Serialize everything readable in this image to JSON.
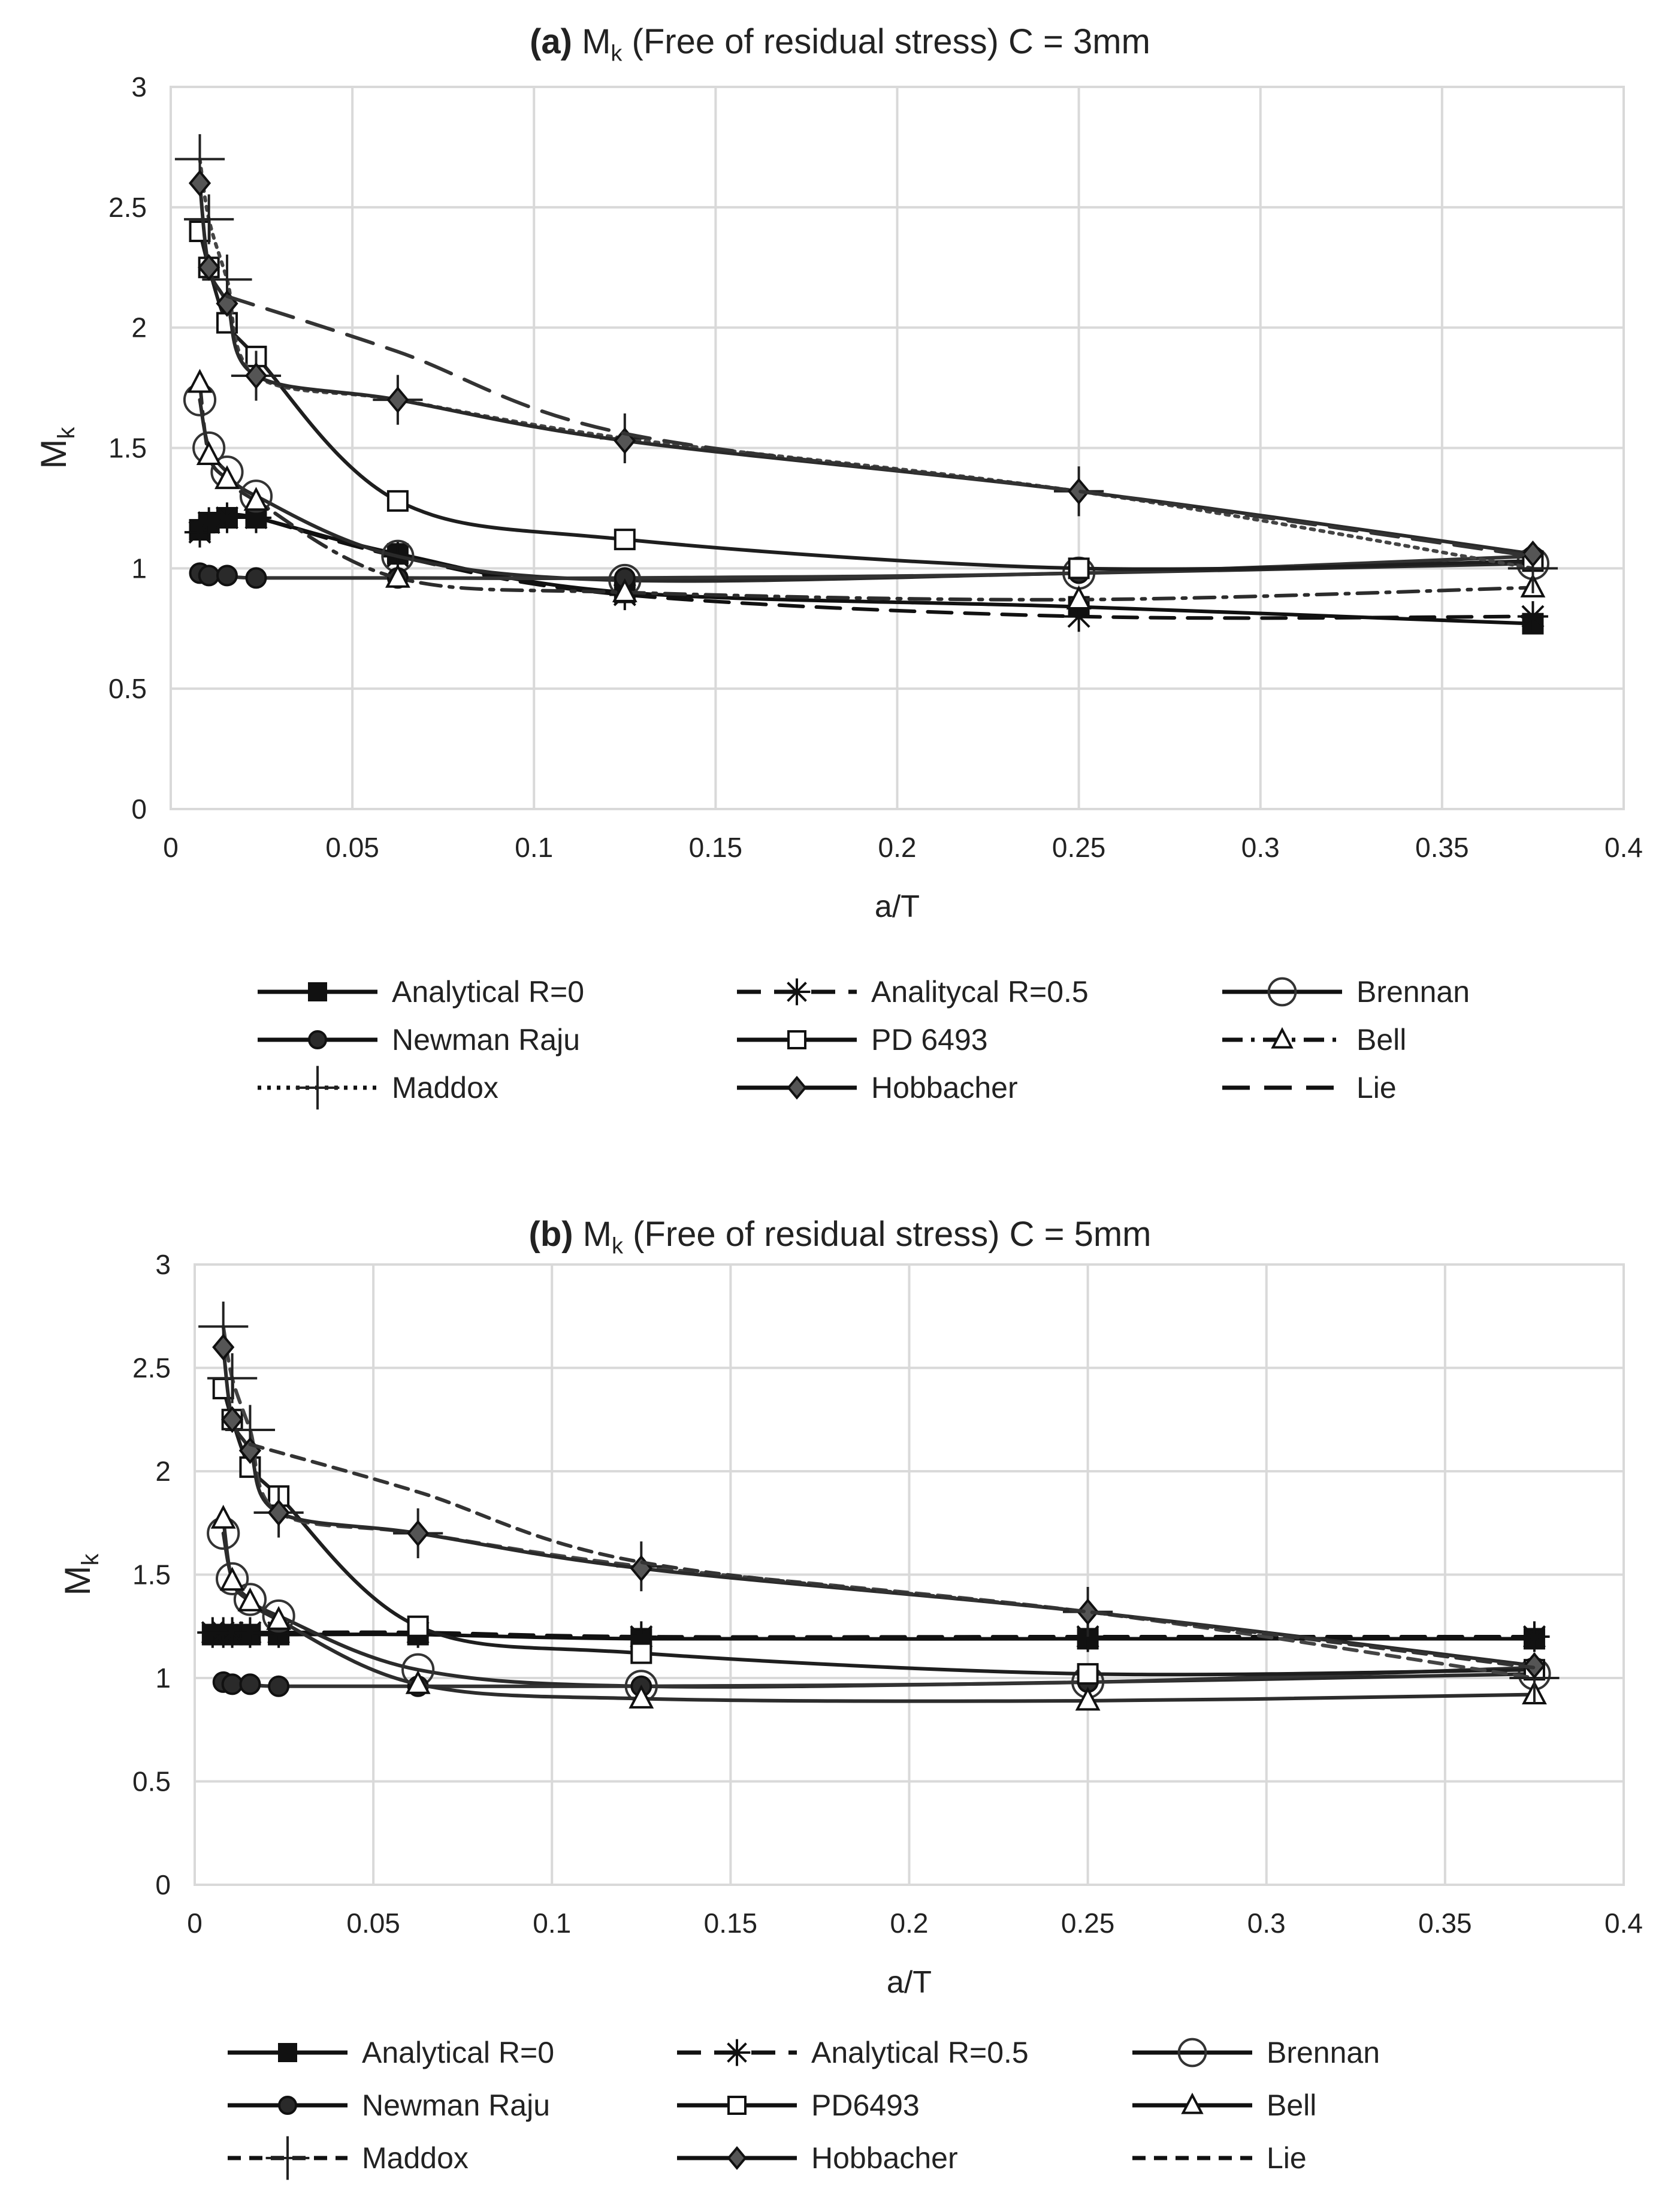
{
  "chart_data": [
    {
      "id": "a",
      "type": "line",
      "title_prefix": "(a)",
      "title_text": " M",
      "title_sub": "k",
      "title_rest": " (Free of residual stress)  C = 3mm",
      "xlabel": "a/T",
      "ylabel": "M",
      "ylabel_sub": "k",
      "xlim": [
        0,
        0.4
      ],
      "ylim": [
        0,
        3
      ],
      "xticks": [
        "0",
        "0.05",
        "0.1",
        "0.15",
        "0.2",
        "0.25",
        "0.3",
        "0.35",
        "0.4"
      ],
      "yticks": [
        "0",
        "0.5",
        "1",
        "1.5",
        "2",
        "2.5",
        "3"
      ],
      "grid": true,
      "legend_position": "bottom",
      "series": [
        {
          "name": "Analytical R=0",
          "marker": "filled-square",
          "dash": "solid",
          "x": [
            0.008,
            0.0105,
            0.0155,
            0.0235,
            0.0625,
            0.125,
            0.25,
            0.375
          ],
          "y": [
            1.16,
            1.19,
            1.21,
            1.21,
            1.06,
            0.9,
            0.84,
            0.77
          ]
        },
        {
          "name": "Analitycal R=0.5",
          "marker": "asterisk",
          "dash": "dash",
          "x": [
            0.008,
            0.0105,
            0.0155,
            0.0235,
            0.0625,
            0.125,
            0.25,
            0.375
          ],
          "y": [
            1.15,
            1.19,
            1.21,
            1.21,
            1.05,
            0.89,
            0.8,
            0.8
          ]
        },
        {
          "name": "Brennan",
          "marker": "open-circle",
          "dash": "solid",
          "x": [
            0.008,
            0.0105,
            0.0155,
            0.0235,
            0.0625,
            0.125,
            0.25,
            0.375
          ],
          "y": [
            1.7,
            1.5,
            1.4,
            1.3,
            1.05,
            0.95,
            0.98,
            1.02
          ]
        },
        {
          "name": "Newman Raju",
          "marker": "filled-circle",
          "dash": "solid",
          "x": [
            0.008,
            0.0105,
            0.0155,
            0.0235,
            0.0625,
            0.125,
            0.25,
            0.375
          ],
          "y": [
            0.98,
            0.97,
            0.97,
            0.96,
            0.96,
            0.96,
            0.98,
            1.05
          ]
        },
        {
          "name": "PD 6493",
          "marker": "open-square",
          "dash": "solid",
          "x": [
            0.008,
            0.0105,
            0.0155,
            0.0235,
            0.0625,
            0.125,
            0.25,
            0.375
          ],
          "y": [
            2.4,
            2.25,
            2.02,
            1.88,
            1.28,
            1.12,
            1.0,
            1.03
          ]
        },
        {
          "name": "Bell",
          "marker": "open-triangle",
          "dash": "dashdot",
          "x": [
            0.008,
            0.0105,
            0.0155,
            0.0235,
            0.0625,
            0.125,
            0.25,
            0.375
          ],
          "y": [
            1.77,
            1.47,
            1.37,
            1.28,
            0.96,
            0.9,
            0.87,
            0.92
          ]
        },
        {
          "name": "Maddox",
          "marker": "plus",
          "dash": "dot",
          "x": [
            0.008,
            0.0105,
            0.0155,
            0.0235,
            0.0625,
            0.125,
            0.25,
            0.375
          ],
          "y": [
            2.7,
            2.45,
            2.2,
            1.8,
            1.7,
            1.54,
            1.32,
            1.0
          ]
        },
        {
          "name": "Hobbacher",
          "marker": "filled-diamond",
          "dash": "solid",
          "x": [
            0.008,
            0.0105,
            0.0155,
            0.0235,
            0.0625,
            0.125,
            0.25,
            0.375
          ],
          "y": [
            2.6,
            2.25,
            2.1,
            1.8,
            1.7,
            1.53,
            1.32,
            1.06
          ]
        },
        {
          "name": "Lie",
          "marker": "none",
          "dash": "longdash",
          "x": [
            0.0155,
            0.0625,
            0.125,
            0.25,
            0.375
          ],
          "y": [
            2.13,
            1.9,
            1.56,
            1.32,
            1.05
          ]
        }
      ]
    },
    {
      "id": "b",
      "type": "line",
      "title_prefix": "(b)",
      "title_text": " M",
      "title_sub": "k",
      "title_rest": " (Free of residual stress)  C = 5mm",
      "xlabel": "a/T",
      "ylabel": "M",
      "ylabel_sub": "k",
      "xlim": [
        0,
        0.4
      ],
      "ylim": [
        0,
        3
      ],
      "xticks": [
        "0",
        "0.05",
        "0.1",
        "0.15",
        "0.2",
        "0.25",
        "0.3",
        "0.35",
        "0.4"
      ],
      "yticks": [
        "0",
        "0.5",
        "1",
        "1.5",
        "2",
        "2.5",
        "3"
      ],
      "grid": true,
      "legend_position": "bottom",
      "series": [
        {
          "name": "Analytical R=0",
          "marker": "filled-square",
          "dash": "solid",
          "x": [
            0.005,
            0.008,
            0.0105,
            0.0155,
            0.0235,
            0.0625,
            0.125,
            0.25,
            0.375
          ],
          "y": [
            1.21,
            1.21,
            1.21,
            1.21,
            1.21,
            1.21,
            1.19,
            1.19,
            1.19
          ]
        },
        {
          "name": "Analytical R=0.5",
          "marker": "asterisk",
          "dash": "dash",
          "x": [
            0.005,
            0.008,
            0.0105,
            0.0155,
            0.0235,
            0.0625,
            0.125,
            0.25,
            0.375
          ],
          "y": [
            1.22,
            1.22,
            1.22,
            1.22,
            1.22,
            1.22,
            1.2,
            1.2,
            1.2
          ]
        },
        {
          "name": "Brennan",
          "marker": "open-circle",
          "dash": "solid",
          "x": [
            0.008,
            0.0105,
            0.0155,
            0.0235,
            0.0625,
            0.125,
            0.25,
            0.375
          ],
          "y": [
            1.7,
            1.48,
            1.38,
            1.3,
            1.04,
            0.96,
            0.98,
            1.02
          ]
        },
        {
          "name": "Newman Raju",
          "marker": "filled-circle",
          "dash": "solid",
          "x": [
            0.008,
            0.0105,
            0.0155,
            0.0235,
            0.0625,
            0.125,
            0.25,
            0.375
          ],
          "y": [
            0.98,
            0.97,
            0.97,
            0.96,
            0.96,
            0.96,
            0.98,
            1.05
          ]
        },
        {
          "name": "PD6493",
          "marker": "open-square",
          "dash": "solid",
          "x": [
            0.008,
            0.0105,
            0.0155,
            0.0235,
            0.0625,
            0.125,
            0.25,
            0.375
          ],
          "y": [
            2.4,
            2.25,
            2.02,
            1.88,
            1.25,
            1.12,
            1.02,
            1.04
          ]
        },
        {
          "name": "Bell",
          "marker": "open-triangle",
          "dash": "solid",
          "x": [
            0.008,
            0.0105,
            0.0155,
            0.0235,
            0.0625,
            0.125,
            0.25,
            0.375
          ],
          "y": [
            1.77,
            1.47,
            1.37,
            1.28,
            0.97,
            0.9,
            0.89,
            0.92
          ]
        },
        {
          "name": "Maddox",
          "marker": "plus",
          "dash": "shortdash",
          "x": [
            0.008,
            0.0105,
            0.0155,
            0.0235,
            0.0625,
            0.125,
            0.25,
            0.375
          ],
          "y": [
            2.7,
            2.45,
            2.2,
            1.8,
            1.7,
            1.54,
            1.32,
            1.0
          ]
        },
        {
          "name": "Hobbacher",
          "marker": "filled-diamond",
          "dash": "solid",
          "x": [
            0.008,
            0.0105,
            0.0155,
            0.0235,
            0.0625,
            0.125,
            0.25,
            0.375
          ],
          "y": [
            2.6,
            2.25,
            2.1,
            1.8,
            1.7,
            1.53,
            1.32,
            1.06
          ]
        },
        {
          "name": "Lie",
          "marker": "none",
          "dash": "shortdash",
          "x": [
            0.0155,
            0.0625,
            0.125,
            0.25,
            0.375
          ],
          "y": [
            2.13,
            1.9,
            1.56,
            1.32,
            1.05
          ]
        }
      ]
    }
  ]
}
